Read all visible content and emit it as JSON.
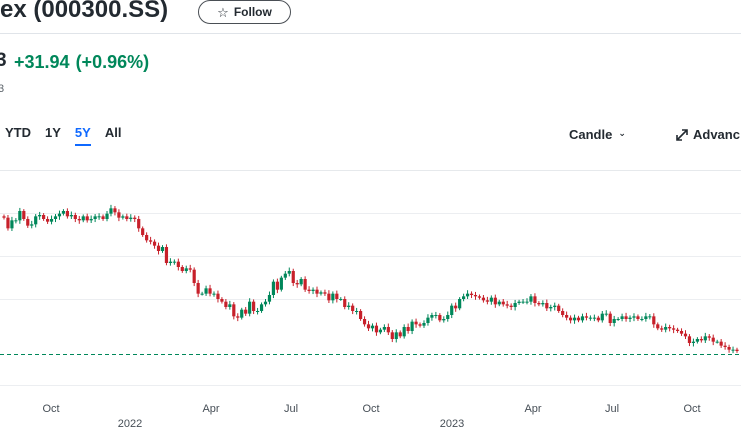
{
  "header": {
    "title": "ex (000300.SS)",
    "follow_label": "Follow"
  },
  "quote": {
    "price_tail": "3",
    "change": "+31.94",
    "change_pct": "(+0.96%)",
    "subtext": "3"
  },
  "ranges": [
    "YTD",
    "1Y",
    "5Y",
    "All"
  ],
  "active_range": "5Y",
  "chart_controls": {
    "chart_type": "Candle",
    "advanced": "Advanc"
  },
  "colors": {
    "up": "#00875a",
    "down": "#c7202a",
    "accent": "#0f69ff",
    "baseline": "#00875a"
  },
  "icons": {
    "follow": "star-outline-icon",
    "chart_type": "chevron-down-icon",
    "advanced": "expand-arrows-icon"
  },
  "chart_data": {
    "type": "candlestick",
    "x_ticks": [
      "Oct",
      "2022",
      "Apr",
      "Jul",
      "Oct",
      "2023",
      "Apr",
      "Jul",
      "Oct"
    ],
    "grid": "horizontal",
    "baseline": "dashed",
    "closes": [
      3870,
      3790,
      3850,
      3850,
      3920,
      3860,
      3810,
      3820,
      3880,
      3890,
      3860,
      3840,
      3860,
      3880,
      3900,
      3920,
      3880,
      3890,
      3860,
      3850,
      3880,
      3850,
      3860,
      3880,
      3880,
      3860,
      3900,
      3940,
      3910,
      3870,
      3880,
      3860,
      3870,
      3860,
      3790,
      3740,
      3700,
      3690,
      3660,
      3620,
      3650,
      3530,
      3540,
      3540,
      3500,
      3470,
      3490,
      3480,
      3380,
      3300,
      3300,
      3340,
      3300,
      3300,
      3260,
      3240,
      3200,
      3220,
      3130,
      3120,
      3180,
      3150,
      3240,
      3170,
      3170,
      3220,
      3240,
      3290,
      3390,
      3330,
      3420,
      3450,
      3470,
      3380,
      3370,
      3410,
      3330,
      3320,
      3330,
      3300,
      3310,
      3300,
      3250,
      3300,
      3260,
      3260,
      3200,
      3210,
      3170,
      3170,
      3110,
      3070,
      3040,
      3060,
      3010,
      3030,
      3050,
      3010,
      2960,
      3010,
      2980,
      3050,
      3020,
      3090,
      3070,
      3060,
      3080,
      3120,
      3140,
      3140,
      3100,
      3110,
      3140,
      3210,
      3190,
      3260,
      3280,
      3300,
      3290,
      3280,
      3270,
      3250,
      3240,
      3270,
      3220,
      3240,
      3220,
      3210,
      3200,
      3230,
      3240,
      3240,
      3240,
      3280,
      3230,
      3220,
      3230,
      3190,
      3200,
      3210,
      3170,
      3140,
      3120,
      3100,
      3120,
      3100,
      3130,
      3120,
      3120,
      3120,
      3100,
      3150,
      3150,
      3080,
      3110,
      3110,
      3130,
      3110,
      3120,
      3130,
      3110,
      3110,
      3130,
      3130,
      3070,
      3040,
      3030,
      3050,
      3040,
      3030,
      3020,
      3000,
      2980,
      2930,
      2940,
      2960,
      2950,
      2980,
      2970,
      2940,
      2940,
      2910,
      2900,
      2880,
      2880,
      2870
    ]
  }
}
